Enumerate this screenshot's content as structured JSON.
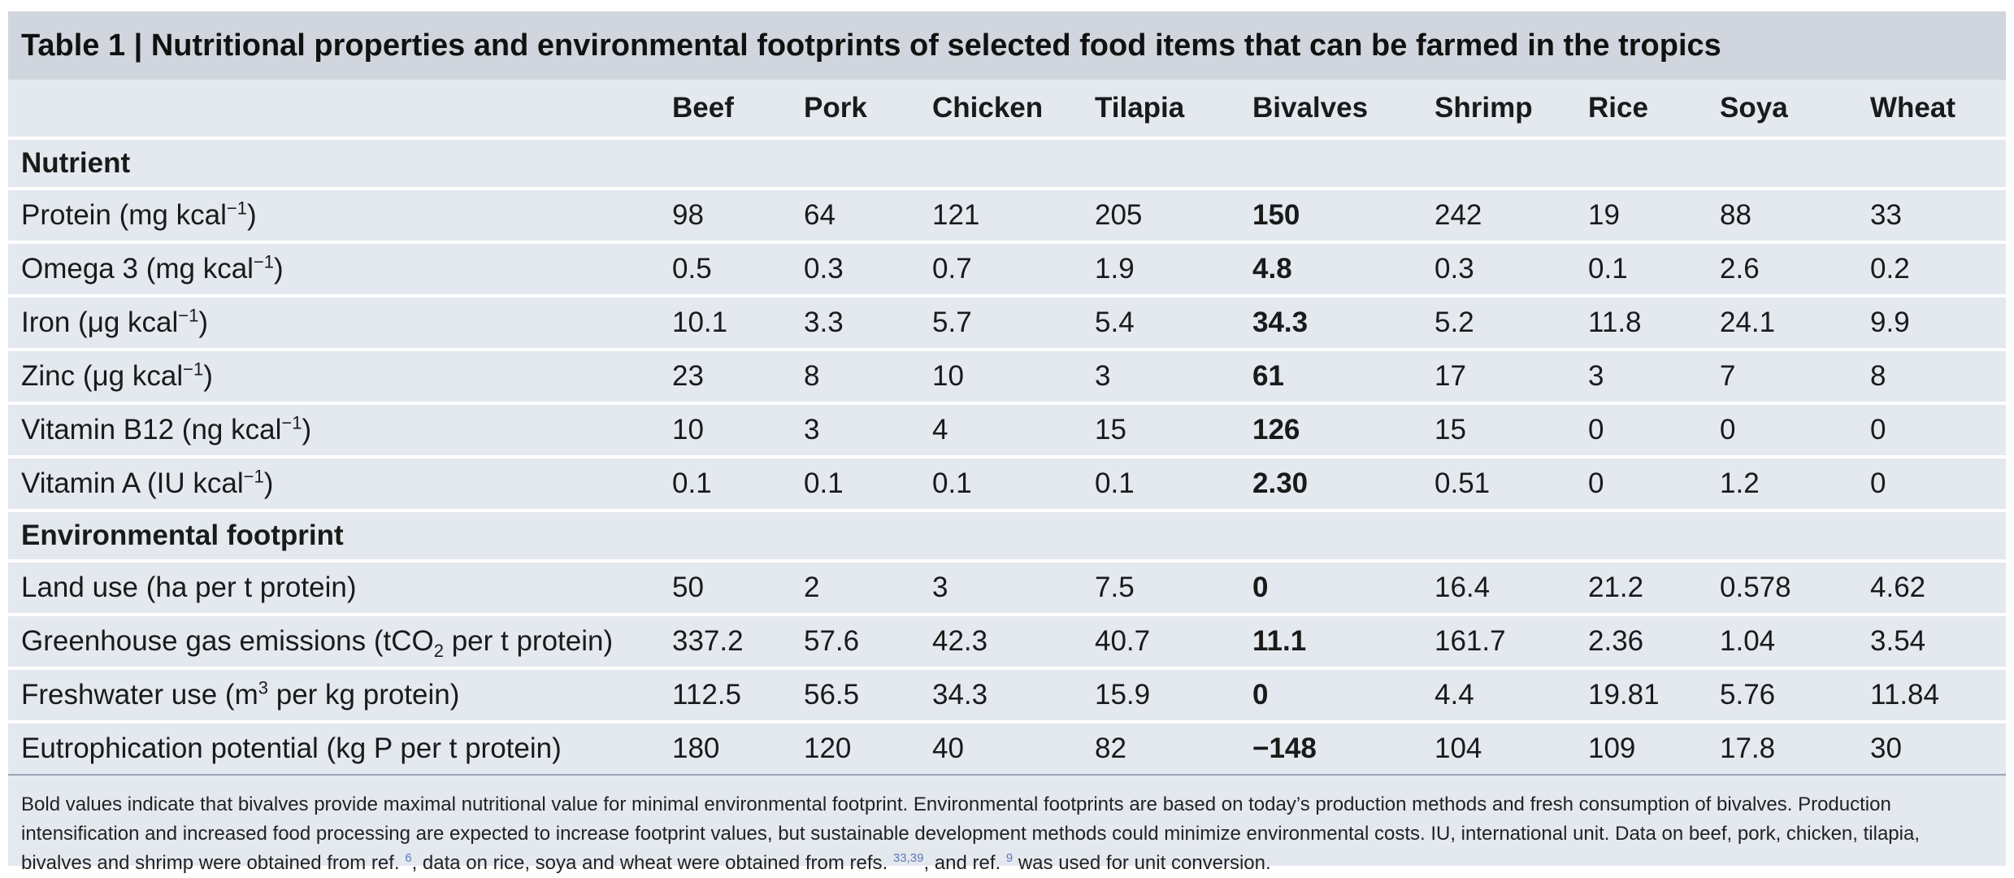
{
  "title": "Table 1 | Nutritional properties and environmental footprints of selected food items that can be farmed in the tropics",
  "columns": [
    "Beef",
    "Pork",
    "Chicken",
    "Tilapia",
    "Bivalves",
    "Shrimp",
    "Rice",
    "Soya",
    "Wheat"
  ],
  "sections": {
    "nutrient": "Nutrient",
    "environmental": "Environmental footprint"
  },
  "nutrient_rows": [
    {
      "label_pre": "Protein (mg kcal",
      "label_sup": "−1",
      "label_post": ")",
      "values": [
        "98",
        "64",
        "121",
        "205",
        "150",
        "242",
        "19",
        "88",
        "33"
      ]
    },
    {
      "label_pre": "Omega 3 (mg kcal",
      "label_sup": "−1",
      "label_post": ")",
      "values": [
        "0.5",
        "0.3",
        "0.7",
        "1.9",
        "4.8",
        "0.3",
        "0.1",
        "2.6",
        "0.2"
      ]
    },
    {
      "label_pre": "Iron (μg kcal",
      "label_sup": "−1",
      "label_post": ")",
      "values": [
        "10.1",
        "3.3",
        "5.7",
        "5.4",
        "34.3",
        "5.2",
        "11.8",
        "24.1",
        "9.9"
      ]
    },
    {
      "label_pre": "Zinc (μg kcal",
      "label_sup": "−1",
      "label_post": ")",
      "values": [
        "23",
        "8",
        "10",
        "3",
        "61",
        "17",
        "3",
        "7",
        "8"
      ]
    },
    {
      "label_pre": "Vitamin B12 (ng kcal",
      "label_sup": "−1",
      "label_post": ")",
      "values": [
        "10",
        "3",
        "4",
        "15",
        "126",
        "15",
        "0",
        "0",
        "0"
      ]
    },
    {
      "label_pre": "Vitamin A (IU kcal",
      "label_sup": "−1",
      "label_post": ")",
      "values": [
        "0.1",
        "0.1",
        "0.1",
        "0.1",
        "2.30",
        "0.51",
        "0",
        "1.2",
        "0"
      ]
    }
  ],
  "env_rows": [
    {
      "label_pre": "Land use (ha per t protein)",
      "label_sup": "",
      "label_sub": "",
      "label_post": "",
      "values": [
        "50",
        "2",
        "3",
        "7.5",
        "0",
        "16.4",
        "21.2",
        "0.578",
        "4.62"
      ]
    },
    {
      "label_pre": "Greenhouse gas emissions (tCO",
      "label_sup": "",
      "label_sub": "2",
      "label_post": " per t protein)",
      "values": [
        "337.2",
        "57.6",
        "42.3",
        "40.7",
        "11.1",
        "161.7",
        "2.36",
        "1.04",
        "3.54"
      ]
    },
    {
      "label_pre": "Freshwater use (m",
      "label_sup": "3",
      "label_sub": "",
      "label_post": " per kg protein)",
      "values": [
        "112.5",
        "56.5",
        "34.3",
        "15.9",
        "0",
        "4.4",
        "19.81",
        "5.76",
        "11.84"
      ]
    },
    {
      "label_pre": "Eutrophication potential (kg P per t protein)",
      "label_sup": "",
      "label_sub": "",
      "label_post": "",
      "values": [
        "180",
        "120",
        "40",
        "82",
        "−148",
        "104",
        "109",
        "17.8",
        "30"
      ]
    }
  ],
  "footnote": {
    "part1": "Bold values indicate that bivalves provide maximal nutritional value for minimal environmental footprint. Environmental footprints are based on today’s production methods and fresh consumption of bivalves. Production intensification and increased food processing are expected to increase footprint values, but sustainable development methods could minimize environmental costs. IU, international unit. Data on beef, pork, chicken, tilapia, bivalves and shrimp were obtained from ref. ",
    "ref1": "6",
    "part2": ", data on rice, soya and wheat were obtained from refs. ",
    "ref2": "33,39",
    "part3": ", and ref. ",
    "ref3": "9",
    "part4": " was used for unit conversion."
  }
}
